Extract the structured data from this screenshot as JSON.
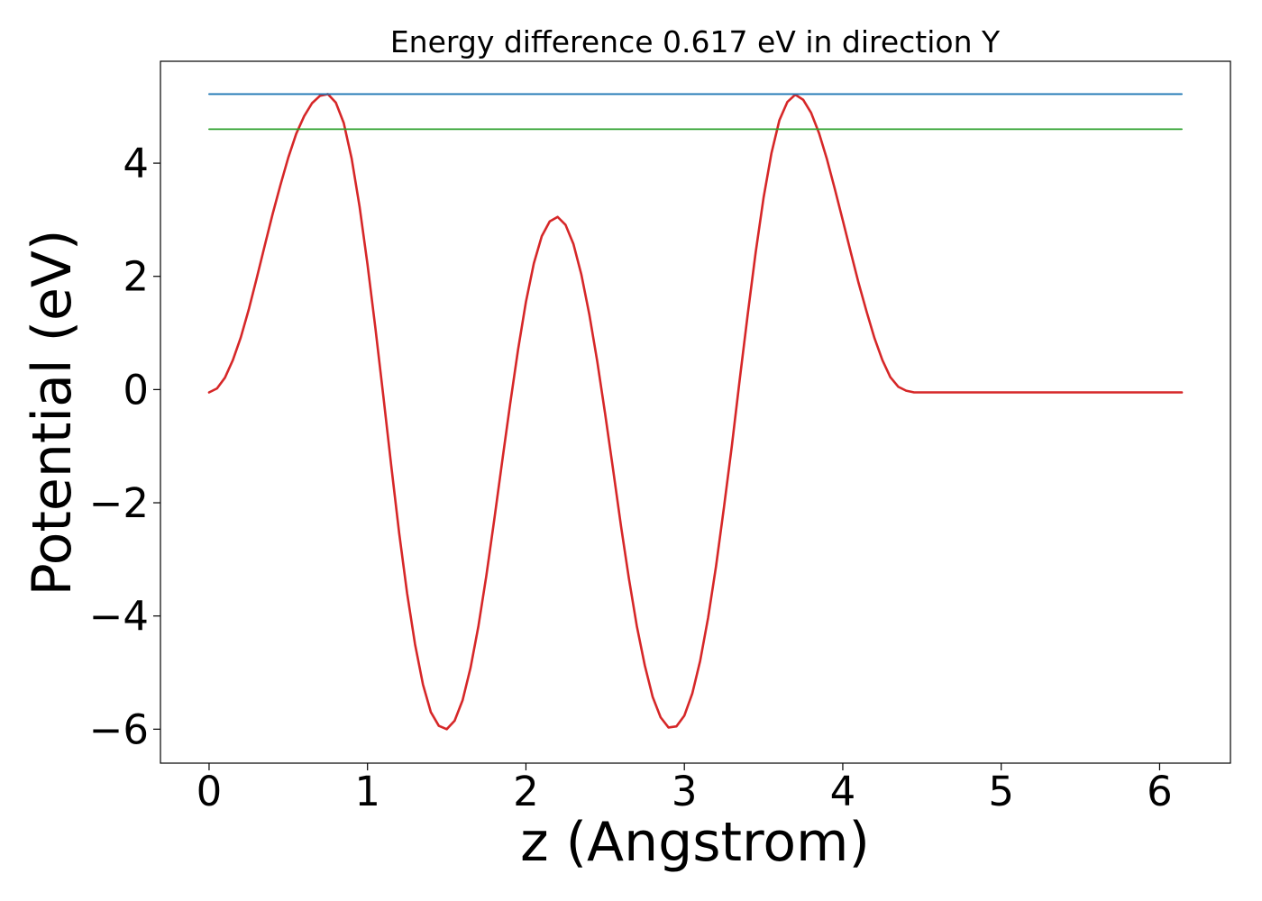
{
  "chart_data": {
    "type": "line",
    "title": "Energy difference 0.617 eV in direction Y",
    "xlabel": "z (Angstrom)",
    "ylabel": "Potential (eV)",
    "xlim": [
      -0.307,
      6.447
    ],
    "ylim": [
      -6.6,
      5.8
    ],
    "xticks": [
      0,
      1,
      2,
      3,
      4,
      5,
      6
    ],
    "xtick_labels": [
      "0",
      "1",
      "2",
      "3",
      "4",
      "5",
      "6"
    ],
    "yticks": [
      4,
      2,
      0,
      -2,
      -4,
      -6
    ],
    "ytick_labels": [
      "4",
      "2",
      "0",
      "−2",
      "−4",
      "−6"
    ],
    "grid": false,
    "series": [
      {
        "color": "#d62728",
        "x": [
          0.0,
          0.05,
          0.1,
          0.15,
          0.2,
          0.25,
          0.3,
          0.35,
          0.4,
          0.45,
          0.5,
          0.55,
          0.6,
          0.65,
          0.7,
          0.75,
          0.8,
          0.85,
          0.9,
          0.95,
          1.0,
          1.05,
          1.1,
          1.15,
          1.2,
          1.25,
          1.3,
          1.35,
          1.4,
          1.45,
          1.5,
          1.55,
          1.6,
          1.65,
          1.7,
          1.75,
          1.8,
          1.85,
          1.9,
          1.95,
          2.0,
          2.05,
          2.1,
          2.15,
          2.2,
          2.25,
          2.3,
          2.35,
          2.4,
          2.45,
          2.5,
          2.55,
          2.6,
          2.65,
          2.7,
          2.75,
          2.8,
          2.85,
          2.9,
          2.95,
          3.0,
          3.05,
          3.1,
          3.15,
          3.2,
          3.25,
          3.3,
          3.35,
          3.4,
          3.45,
          3.5,
          3.55,
          3.6,
          3.65,
          3.7,
          3.75,
          3.8,
          3.85,
          3.9,
          3.95,
          4.0,
          4.05,
          4.1,
          4.15,
          4.2,
          4.25,
          4.3,
          4.35,
          4.4,
          4.45,
          4.5,
          4.55,
          4.6,
          4.65,
          4.7,
          4.75,
          4.8,
          4.85,
          4.9,
          4.95,
          5.0,
          5.05,
          5.1,
          5.15,
          5.2,
          5.25,
          5.3,
          5.35,
          5.4,
          5.45,
          5.5,
          5.55,
          5.6,
          5.65,
          5.7,
          5.75,
          5.8,
          5.85,
          5.9,
          5.95,
          6.0,
          6.05,
          6.1,
          6.14
        ],
        "y": [
          -0.05,
          0.02,
          0.21,
          0.52,
          0.92,
          1.41,
          1.96,
          2.53,
          3.09,
          3.61,
          4.1,
          4.52,
          4.83,
          5.06,
          5.19,
          5.22,
          5.07,
          4.71,
          4.08,
          3.23,
          2.21,
          1.08,
          -0.12,
          -1.35,
          -2.54,
          -3.6,
          -4.5,
          -5.21,
          -5.7,
          -5.94,
          -6.0,
          -5.85,
          -5.49,
          -4.92,
          -4.18,
          -3.29,
          -2.3,
          -1.27,
          -0.26,
          0.7,
          1.55,
          2.23,
          2.71,
          2.97,
          3.05,
          2.91,
          2.57,
          2.03,
          1.33,
          0.5,
          -0.43,
          -1.41,
          -2.41,
          -3.34,
          -4.18,
          -4.87,
          -5.43,
          -5.79,
          -5.97,
          -5.95,
          -5.76,
          -5.37,
          -4.79,
          -4.03,
          -3.12,
          -2.08,
          -0.99,
          0.19,
          1.33,
          2.42,
          3.39,
          4.18,
          4.76,
          5.08,
          5.21,
          5.12,
          4.89,
          4.53,
          4.07,
          3.54,
          2.99,
          2.43,
          1.88,
          1.38,
          0.91,
          0.52,
          0.22,
          0.05,
          -0.02,
          -0.05,
          -0.05,
          -0.05,
          -0.05,
          -0.05,
          -0.05,
          -0.05,
          -0.05,
          -0.05,
          -0.05,
          -0.05,
          -0.05,
          -0.05,
          -0.05,
          -0.05,
          -0.05,
          -0.05,
          -0.05,
          -0.05,
          -0.05,
          -0.05,
          -0.05,
          -0.05,
          -0.05,
          -0.05,
          -0.05,
          -0.05,
          -0.05,
          -0.05,
          -0.05,
          -0.05,
          -0.05,
          -0.05,
          -0.05,
          -0.05
        ]
      },
      {
        "color": "#1f77b4",
        "x": [
          0.0,
          6.14
        ],
        "y": [
          5.22,
          5.22
        ]
      },
      {
        "color": "#2ca02c",
        "x": [
          0.0,
          6.14
        ],
        "y": [
          4.6,
          4.6
        ]
      }
    ]
  }
}
